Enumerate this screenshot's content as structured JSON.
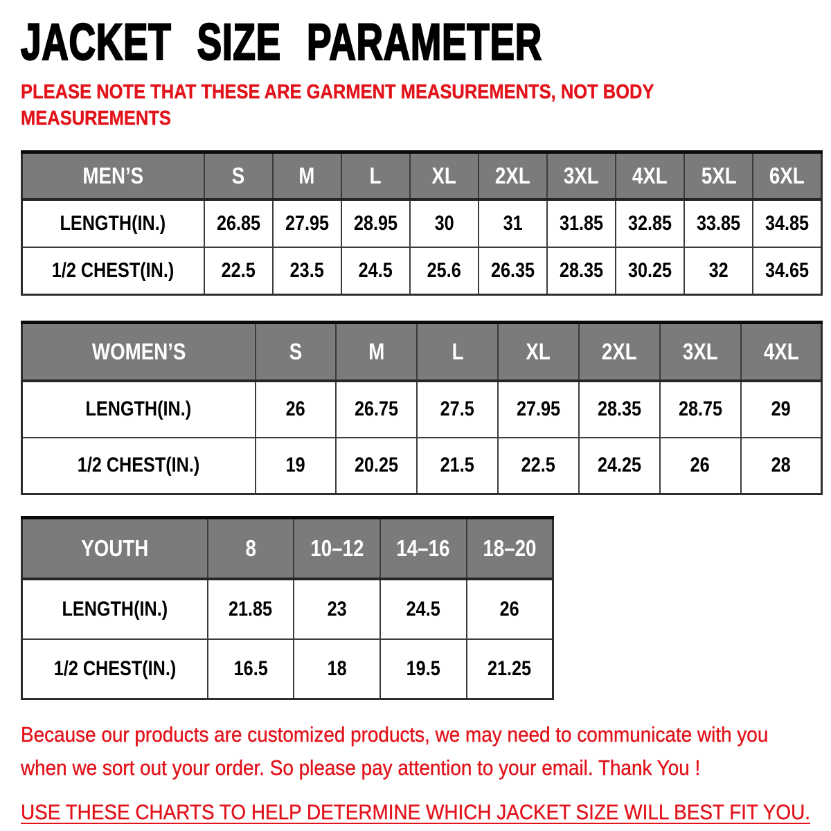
{
  "colors": {
    "accent_red": "#e2131a",
    "header_gray": "#7b7b7b",
    "border_dark": "#3c3c3c",
    "text_black": "#000000"
  },
  "header": {
    "title": "JACKET SIZE PARAMETER",
    "note_lines": [
      "PLEASE NOTE THAT THESE ARE GARMENT MEASUREMENTS, NOT BODY",
      "MEASUREMENTS"
    ]
  },
  "tables": [
    {
      "name": "mens",
      "header": [
        "MEN’S",
        "S",
        "M",
        "L",
        "XL",
        "2XL",
        "3XL",
        "4XL",
        "5XL",
        "6XL"
      ],
      "rows": [
        {
          "label": "LENGTH(IN.)",
          "values": [
            "26.85",
            "27.95",
            "28.95",
            "30",
            "31",
            "31.85",
            "32.85",
            "33.85",
            "34.85"
          ]
        },
        {
          "label": "1/2 CHEST(IN.)",
          "values": [
            "22.5",
            "23.5",
            "24.5",
            "25.6",
            "26.35",
            "28.35",
            "30.25",
            "32",
            "34.65"
          ]
        }
      ]
    },
    {
      "name": "womens",
      "header": [
        "WOMEN’S",
        "S",
        "M",
        "L",
        "XL",
        "2XL",
        "3XL",
        "4XL"
      ],
      "rows": [
        {
          "label": "LENGTH(IN.)",
          "values": [
            "26",
            "26.75",
            "27.5",
            "27.95",
            "28.35",
            "28.75",
            "29"
          ]
        },
        {
          "label": "1/2 CHEST(IN.)",
          "values": [
            "19",
            "20.25",
            "21.5",
            "22.5",
            "24.25",
            "26",
            "28"
          ]
        }
      ]
    },
    {
      "name": "youth",
      "header": [
        "YOUTH",
        "8",
        "10–12",
        "14–16",
        "18–20"
      ],
      "rows": [
        {
          "label": "LENGTH(IN.)",
          "values": [
            "21.85",
            "23",
            "24.5",
            "26"
          ]
        },
        {
          "label": "1/2 CHEST(IN.)",
          "values": [
            "16.5",
            "18",
            "19.5",
            "21.25"
          ]
        }
      ]
    }
  ],
  "footer": {
    "paragraph_lines": [
      "Because our products are customized products, we may need to communicate with you",
      "when we sort out your order. So please pay attention to your email. Thank You !"
    ],
    "underlined_line": "USE THESE CHARTS TO HELP DETERMINE WHICH JACKET SIZE WILL BEST FIT YOU."
  }
}
